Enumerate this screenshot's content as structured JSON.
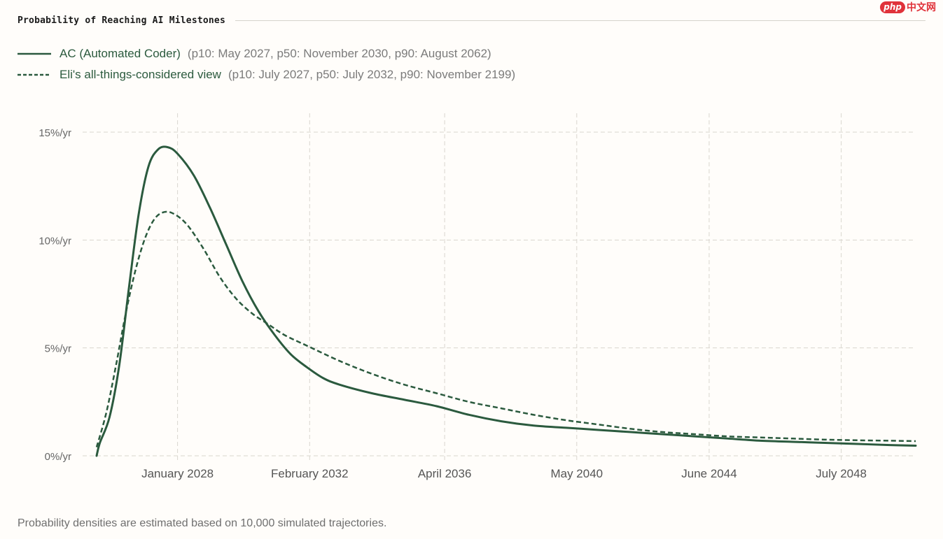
{
  "header": {
    "title": "Probability of Reaching AI Milestones"
  },
  "watermark": {
    "logo": "php",
    "text": "中文网"
  },
  "legend": {
    "items": [
      {
        "name": "AC (Automated Coder)",
        "detail": "(p10: May 2027, p50: November 2030, p90: August 2062)",
        "style": "solid"
      },
      {
        "name": "Eli's all-things-considered view",
        "detail": "(p10: July 2027, p50: July 2032, p90: November 2199)",
        "style": "dashed"
      }
    ]
  },
  "footnote": "Probability densities are estimated based on 10,000 simulated trajectories.",
  "chart_data": {
    "type": "line",
    "title": "Probability of Reaching AI Milestones",
    "xlabel": "",
    "ylabel": "",
    "x_unit": "year",
    "xlim": [
      2025.5,
      2050.8
    ],
    "ylim": [
      0,
      15
    ],
    "x_ticks": [
      {
        "label": "January 2028",
        "x": 2028.0
      },
      {
        "label": "February 2032",
        "x": 2032.08
      },
      {
        "label": "April 2036",
        "x": 2036.25
      },
      {
        "label": "May 2040",
        "x": 2040.33
      },
      {
        "label": "June 2044",
        "x": 2044.42
      },
      {
        "label": "July 2048",
        "x": 2048.5
      }
    ],
    "y_ticks": [
      {
        "label": "0%/yr",
        "y": 0
      },
      {
        "label": "5%/yr",
        "y": 5
      },
      {
        "label": "10%/yr",
        "y": 10
      },
      {
        "label": "15%/yr",
        "y": 15
      }
    ],
    "grid": true,
    "color": "#2b5a3e",
    "series": [
      {
        "name": "AC (Automated Coder)",
        "style": "solid",
        "points": [
          [
            2025.5,
            0.0
          ],
          [
            2025.6,
            0.6
          ],
          [
            2025.9,
            1.8
          ],
          [
            2026.2,
            4.2
          ],
          [
            2026.5,
            7.8
          ],
          [
            2026.8,
            11.2
          ],
          [
            2027.1,
            13.4
          ],
          [
            2027.4,
            14.2
          ],
          [
            2027.7,
            14.3
          ],
          [
            2028.0,
            14.0
          ],
          [
            2028.5,
            13.0
          ],
          [
            2029.0,
            11.5
          ],
          [
            2029.5,
            9.8
          ],
          [
            2030.0,
            8.1
          ],
          [
            2030.5,
            6.7
          ],
          [
            2031.0,
            5.6
          ],
          [
            2031.5,
            4.7
          ],
          [
            2032.0,
            4.1
          ],
          [
            2032.5,
            3.6
          ],
          [
            2033.0,
            3.3
          ],
          [
            2034.0,
            2.9
          ],
          [
            2035.0,
            2.6
          ],
          [
            2036.0,
            2.3
          ],
          [
            2037.0,
            1.9
          ],
          [
            2038.0,
            1.6
          ],
          [
            2039.0,
            1.4
          ],
          [
            2040.0,
            1.3
          ],
          [
            2041.0,
            1.2
          ],
          [
            2042.0,
            1.1
          ],
          [
            2043.0,
            1.0
          ],
          [
            2044.0,
            0.9
          ],
          [
            2045.0,
            0.8
          ],
          [
            2046.0,
            0.7
          ],
          [
            2047.0,
            0.65
          ],
          [
            2048.0,
            0.6
          ],
          [
            2049.0,
            0.55
          ],
          [
            2050.0,
            0.5
          ],
          [
            2050.8,
            0.47
          ]
        ]
      },
      {
        "name": "Eli's all-things-considered view",
        "style": "dashed",
        "points": [
          [
            2025.5,
            0.4
          ],
          [
            2025.8,
            2.0
          ],
          [
            2026.1,
            4.2
          ],
          [
            2026.4,
            6.6
          ],
          [
            2026.7,
            8.6
          ],
          [
            2027.0,
            10.1
          ],
          [
            2027.3,
            11.0
          ],
          [
            2027.6,
            11.3
          ],
          [
            2027.9,
            11.2
          ],
          [
            2028.3,
            10.7
          ],
          [
            2028.8,
            9.6
          ],
          [
            2029.3,
            8.3
          ],
          [
            2029.8,
            7.3
          ],
          [
            2030.3,
            6.6
          ],
          [
            2030.8,
            6.1
          ],
          [
            2031.3,
            5.6
          ],
          [
            2032.0,
            5.1
          ],
          [
            2033.0,
            4.4
          ],
          [
            2034.0,
            3.8
          ],
          [
            2035.0,
            3.3
          ],
          [
            2036.0,
            2.9
          ],
          [
            2037.0,
            2.5
          ],
          [
            2038.0,
            2.2
          ],
          [
            2039.0,
            1.9
          ],
          [
            2040.0,
            1.65
          ],
          [
            2041.0,
            1.45
          ],
          [
            2042.0,
            1.25
          ],
          [
            2043.0,
            1.1
          ],
          [
            2044.0,
            1.0
          ],
          [
            2045.0,
            0.9
          ],
          [
            2046.0,
            0.85
          ],
          [
            2047.0,
            0.8
          ],
          [
            2048.0,
            0.75
          ],
          [
            2049.0,
            0.72
          ],
          [
            2050.0,
            0.7
          ],
          [
            2050.8,
            0.68
          ]
        ]
      }
    ]
  }
}
